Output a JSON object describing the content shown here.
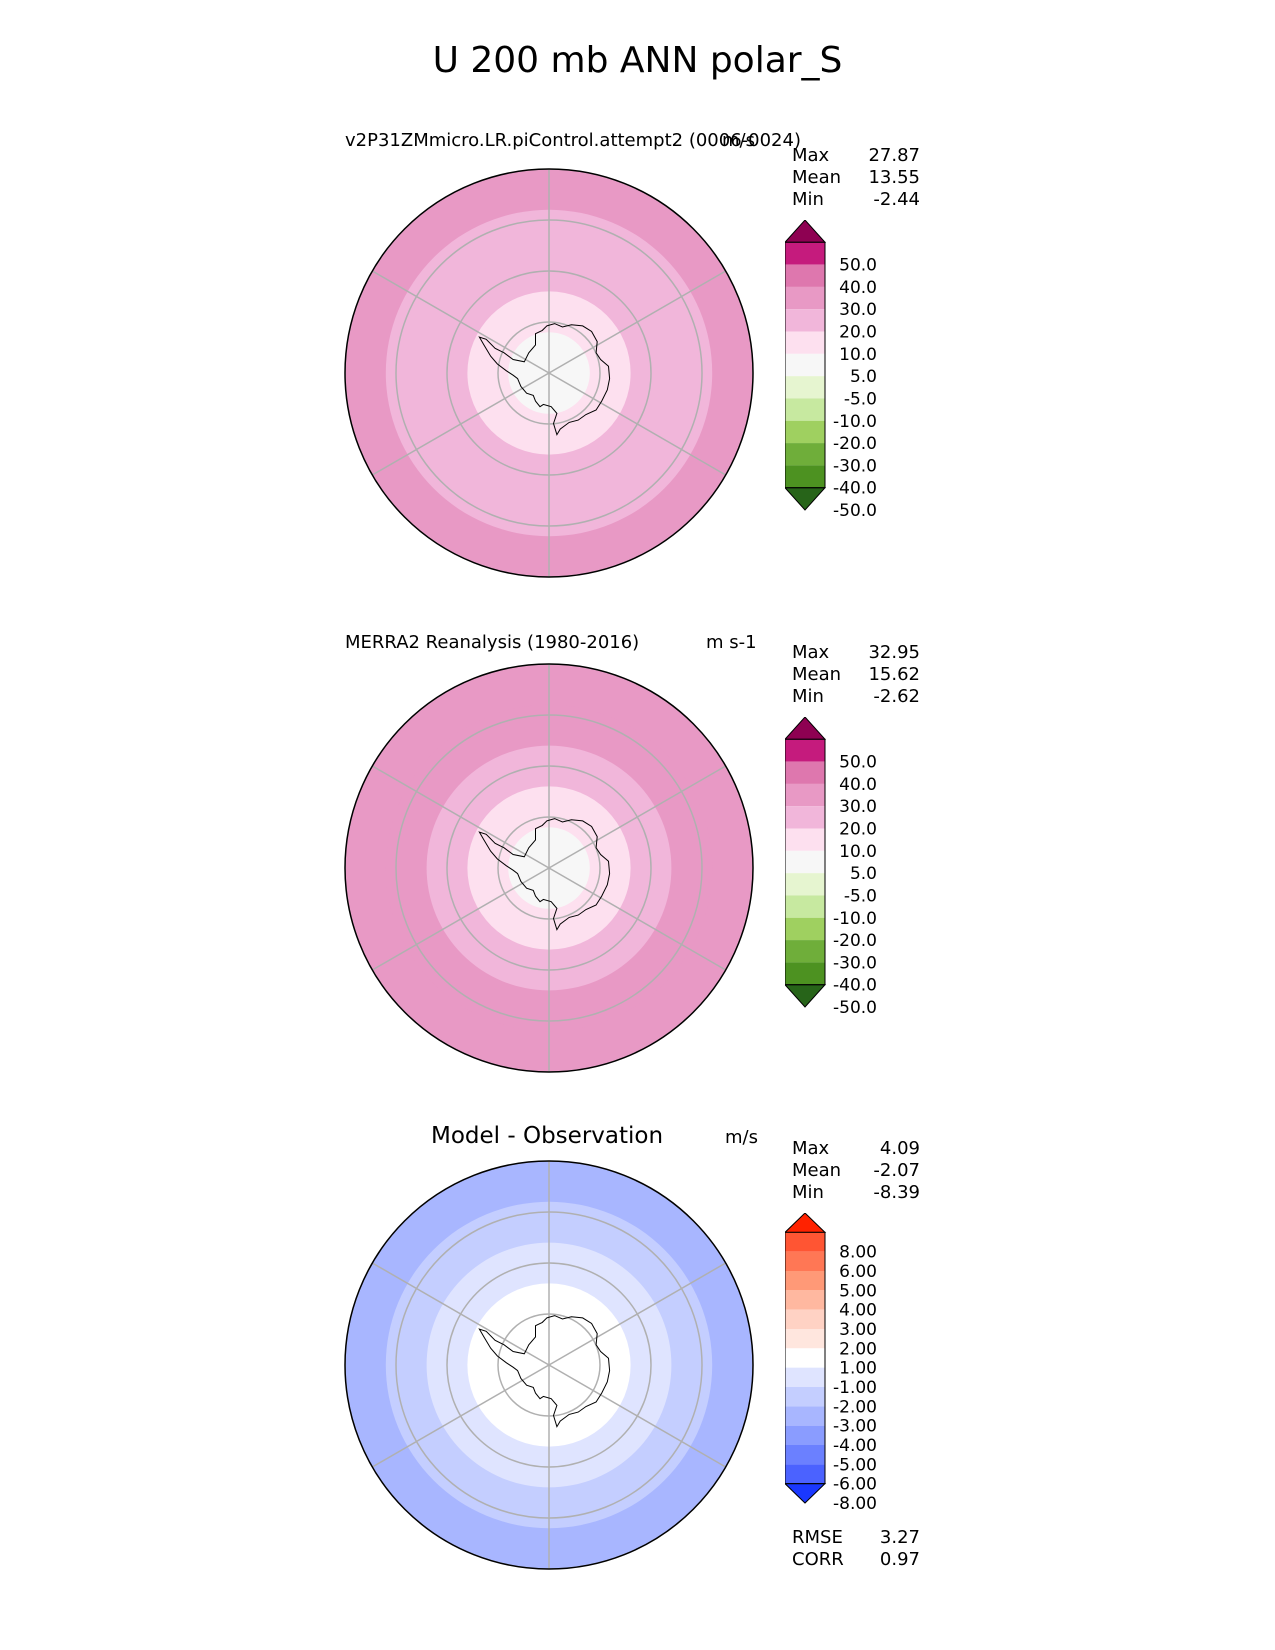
{
  "figure": {
    "title": "U 200 mb ANN polar_S"
  },
  "chart_data": [
    {
      "type": "contour-map",
      "projection": "south-polar-stereographic",
      "title": "v2P31ZMmicro.LR.piControl.attempt2 (0006-0024)",
      "units": "m/s",
      "stats": {
        "max": "27.87",
        "mean": "13.55",
        "min": "-2.44"
      },
      "levels": [
        "50.0",
        "40.0",
        "30.0",
        "20.0",
        "10.0",
        "5.0",
        "-5.0",
        "-10.0",
        "-20.0",
        "-30.0",
        "-40.0",
        "-50.0"
      ],
      "colors": [
        "#8e0152",
        "#c51b7d",
        "#de77ae",
        "#e899c5",
        "#f1b6da",
        "#fde0ef",
        "#f7f7f7",
        "#e6f5d0",
        "#c7e9a0",
        "#9fd060",
        "#6fae3a",
        "#4d9221",
        "#276419"
      ],
      "rings": [
        {
          "value": 10,
          "color": "#f7f7f7"
        },
        {
          "value": 20,
          "color": "#fde0ef"
        },
        {
          "value": 30,
          "color": "#f1b6da"
        },
        {
          "value": 40,
          "color": "#f1b6da"
        },
        {
          "value": 50,
          "color": "#e899c5"
        }
      ]
    },
    {
      "type": "contour-map",
      "projection": "south-polar-stereographic",
      "title": "MERRA2 Reanalysis (1980-2016)",
      "units": "m s-1",
      "stats": {
        "max": "32.95",
        "mean": "15.62",
        "min": "-2.62"
      },
      "levels": [
        "50.0",
        "40.0",
        "30.0",
        "20.0",
        "10.0",
        "5.0",
        "-5.0",
        "-10.0",
        "-20.0",
        "-30.0",
        "-40.0",
        "-50.0"
      ],
      "colors": [
        "#8e0152",
        "#c51b7d",
        "#de77ae",
        "#e899c5",
        "#f1b6da",
        "#fde0ef",
        "#f7f7f7",
        "#e6f5d0",
        "#c7e9a0",
        "#9fd060",
        "#6fae3a",
        "#4d9221",
        "#276419"
      ],
      "rings": [
        {
          "value": 10,
          "color": "#f7f7f7"
        },
        {
          "value": 20,
          "color": "#fde0ef"
        },
        {
          "value": 30,
          "color": "#f1b6da"
        },
        {
          "value": 40,
          "color": "#e899c5"
        },
        {
          "value": 50,
          "color": "#e899c5"
        }
      ]
    },
    {
      "type": "contour-map",
      "projection": "south-polar-stereographic",
      "title": "Model - Observation",
      "units": "m/s",
      "stats": {
        "max": "4.09",
        "mean": "-2.07",
        "min": "-8.39",
        "rmse": "3.27",
        "corr": "0.97"
      },
      "levels": [
        "8.00",
        "6.00",
        "5.00",
        "4.00",
        "3.00",
        "2.00",
        "1.00",
        "-1.00",
        "-2.00",
        "-3.00",
        "-4.00",
        "-5.00",
        "-6.00",
        "-8.00"
      ],
      "colors": [
        "#ff2200",
        "#ff5533",
        "#ff7755",
        "#ff9977",
        "#ffb8a0",
        "#ffd2c4",
        "#ffe6de",
        "#ffffff",
        "#dfe4ff",
        "#c4ceff",
        "#a8b6ff",
        "#8a9cff",
        "#6b80ff",
        "#4b62ff",
        "#1a38ff"
      ],
      "rings": [
        {
          "value": 10,
          "color": "#ffffff"
        },
        {
          "value": 20,
          "color": "#ffffff"
        },
        {
          "value": 30,
          "color": "#dfe4ff"
        },
        {
          "value": 40,
          "color": "#c4ceff"
        },
        {
          "value": 50,
          "color": "#a8b6ff"
        }
      ],
      "labels": {
        "rmse": "RMSE",
        "corr": "CORR"
      }
    }
  ],
  "stat_labels": {
    "max": "Max",
    "mean": "Mean",
    "min": "Min"
  }
}
